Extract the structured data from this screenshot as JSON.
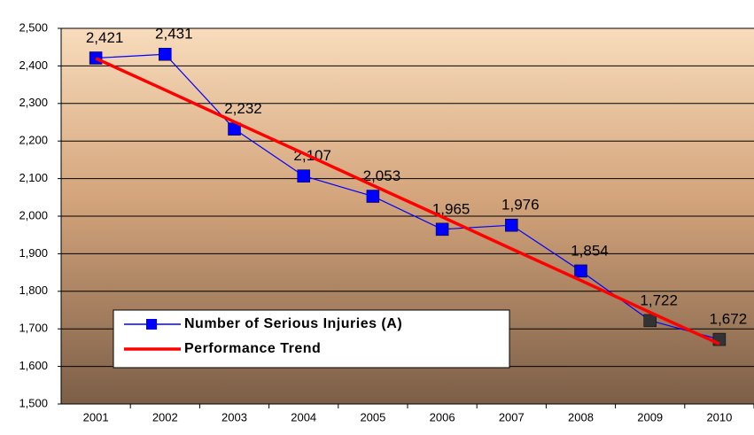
{
  "chart_data": {
    "type": "line",
    "categories": [
      "2001",
      "2002",
      "2003",
      "2004",
      "2005",
      "2006",
      "2007",
      "2008",
      "2009",
      "2010"
    ],
    "series": [
      {
        "name": "Number of Serious Injuries (A)",
        "color": "#0000ff",
        "values": [
          2421,
          2431,
          2232,
          2107,
          2053,
          1965,
          1976,
          1854,
          1722,
          1672
        ],
        "value_labels": [
          "2,421",
          "2,431",
          "2,232",
          "2,107",
          "2,053",
          "1,965",
          "1,976",
          "1,854",
          "1,722",
          "1,672"
        ],
        "point_colors": [
          "#0000ff",
          "#0000ff",
          "#0000ff",
          "#0000ff",
          "#0000ff",
          "#0000ff",
          "#0000ff",
          "#0000ff",
          "#333333",
          "#333333"
        ]
      },
      {
        "name": "Performance Trend",
        "color": "#ff0000",
        "values": [
          2420,
          2336,
          2251,
          2167,
          2082,
          1998,
          1913,
          1829,
          1744,
          1660
        ]
      }
    ],
    "ylim": [
      1500,
      2500
    ],
    "yticks": [
      {
        "value": 1500,
        "label": "1,500"
      },
      {
        "value": 1600,
        "label": "1,600"
      },
      {
        "value": 1700,
        "label": "1,700"
      },
      {
        "value": 1800,
        "label": "1,800"
      },
      {
        "value": 1900,
        "label": "1,900"
      },
      {
        "value": 2000,
        "label": "2,000"
      },
      {
        "value": 2100,
        "label": "2,100"
      },
      {
        "value": 2200,
        "label": "2,200"
      },
      {
        "value": 2300,
        "label": "2,300"
      },
      {
        "value": 2400,
        "label": "2,400"
      },
      {
        "value": 2500,
        "label": "2,500"
      }
    ],
    "grid": true
  }
}
